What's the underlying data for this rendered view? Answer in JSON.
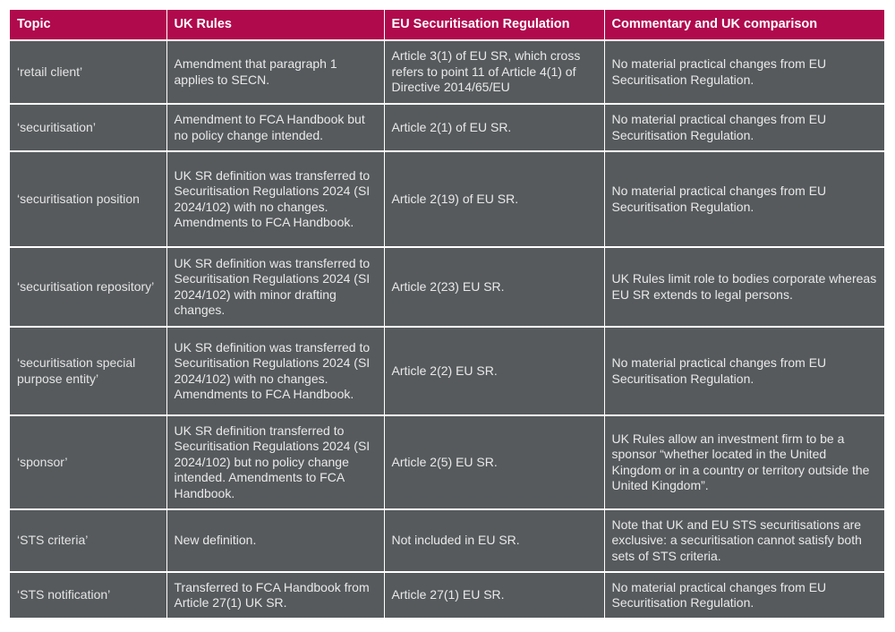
{
  "table": {
    "headers": [
      "Topic",
      "UK Rules",
      "EU Securitisation Regulation",
      "Commentary and UK comparison"
    ],
    "rows": [
      {
        "topic": "‘retail client’",
        "uk_rules": "Amendment that paragraph 1 applies to SECN.",
        "eu_sr": "Article 3(1) of EU SR, which cross refers to point 11 of Article 4(1) of Directive 2014/65/EU",
        "commentary": "No material practical changes from EU Securitisation Regulation."
      },
      {
        "topic": "‘securitisation’",
        "uk_rules": "Amendment to FCA Handbook but no policy change intended.",
        "eu_sr": "Article 2(1) of EU SR.",
        "commentary": "No material practical changes from EU Securitisation Regulation."
      },
      {
        "topic": "‘securitisation position",
        "uk_rules": "UK SR definition was transferred to Securitisation Regulations 2024 (SI 2024/102) with no changes. Amendments to FCA Handbook.",
        "eu_sr": "Article 2(19) of EU SR.",
        "commentary": "No material practical changes from EU Securitisation Regulation."
      },
      {
        "topic": "‘securitisation repository’",
        "uk_rules": "UK SR definition was transferred to Securitisation Regulations 2024 (SI 2024/102) with minor drafting changes.",
        "eu_sr": "Article 2(23) EU SR.",
        "commentary": "UK Rules limit role to bodies corporate whereas EU SR extends to legal persons."
      },
      {
        "topic": "‘securitisation special purpose entity’",
        "uk_rules": "UK SR definition was transferred to Securitisation Regulations 2024 (SI 2024/102) with no changes. Amendments to FCA Handbook.",
        "eu_sr": "Article 2(2) EU SR.",
        "commentary": "No material practical changes from EU Securitisation Regulation."
      },
      {
        "topic": "‘sponsor’",
        "uk_rules": "UK SR definition transferred to Securitisation Regulations 2024 (SI 2024/102) but no policy change intended. Amendments to FCA Handbook.",
        "eu_sr": "Article 2(5) EU SR.",
        "commentary": "UK Rules allow an investment firm to be a sponsor “whether located in the United Kingdom or in a country or territory outside the United Kingdom”."
      },
      {
        "topic": "‘STS criteria’",
        "uk_rules": "New definition.",
        "eu_sr": "Not included in EU SR.",
        "commentary": "Note that UK and EU STS securitisations are exclusive: a securitisation cannot satisfy both sets of STS criteria."
      },
      {
        "topic": "‘STS notification’",
        "uk_rules": "Transferred to FCA Handbook from Article 27(1) UK SR.",
        "eu_sr": "Article 27(1) EU SR.",
        "commentary": "No material practical changes from EU Securitisation Regulation."
      }
    ]
  }
}
